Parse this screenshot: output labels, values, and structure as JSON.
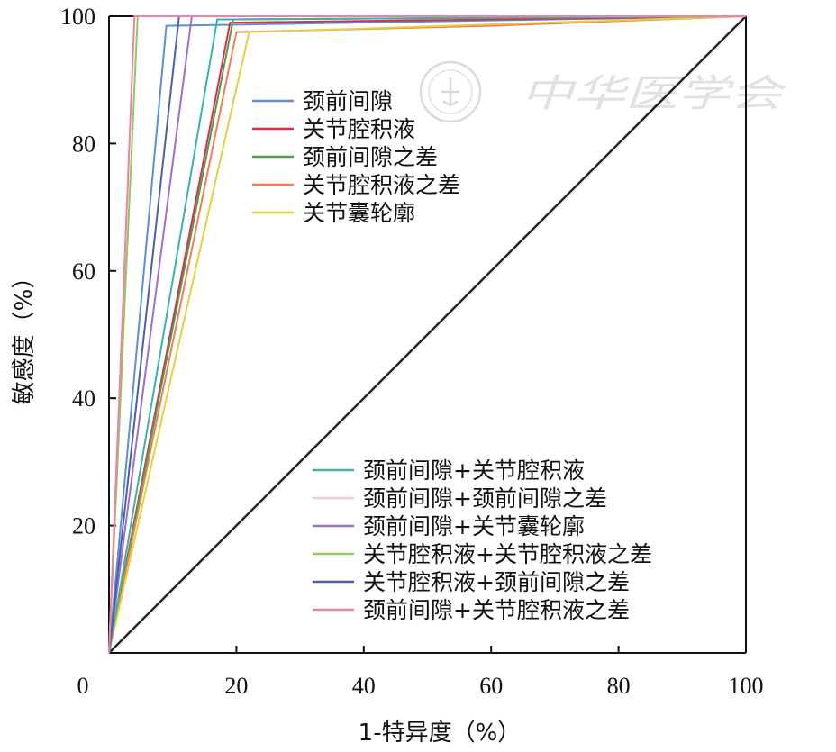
{
  "chart_data": {
    "type": "line",
    "title": "",
    "xlabel": "1-特异度（%）",
    "ylabel": "敏感度（%）",
    "xlim": [
      0,
      100
    ],
    "ylim": [
      0,
      100
    ],
    "x_ticks": [
      "0",
      "20",
      "40",
      "60",
      "80",
      "100"
    ],
    "y_ticks": [
      "20",
      "40",
      "60",
      "80",
      "100"
    ],
    "grid": false,
    "legend_placement": "two groups: upper-left and lower-right",
    "series": [
      {
        "name": "颈前间隙",
        "color": "#5b8fd6",
        "legend_group": 1,
        "points": [
          [
            0,
            0
          ],
          [
            9,
            98.5
          ],
          [
            100,
            100
          ]
        ]
      },
      {
        "name": "关节腔积液",
        "color": "#d9304a",
        "legend_group": 1,
        "points": [
          [
            0,
            0
          ],
          [
            19,
            99
          ],
          [
            100,
            100
          ]
        ]
      },
      {
        "name": "颈前间隙之差",
        "color": "#4f9a4f",
        "legend_group": 1,
        "points": [
          [
            0,
            0
          ],
          [
            19.5,
            99.5
          ],
          [
            100,
            100
          ]
        ]
      },
      {
        "name": "关节腔积液之差",
        "color": "#ee7f4f",
        "legend_group": 1,
        "points": [
          [
            0,
            0
          ],
          [
            20,
            97.5
          ],
          [
            60,
            98.5
          ],
          [
            100,
            100
          ]
        ]
      },
      {
        "name": "关节囊轮廓",
        "color": "#e3d23d",
        "legend_group": 1,
        "points": [
          [
            0,
            0
          ],
          [
            22,
            97.5
          ],
          [
            100,
            100
          ]
        ]
      },
      {
        "name": "颈前间隙+关节腔积液",
        "color": "#3bb3a8",
        "legend_group": 2,
        "points": [
          [
            0,
            0
          ],
          [
            17,
            99.5
          ],
          [
            100,
            100
          ]
        ]
      },
      {
        "name": "颈前间隙+颈前间隙之差",
        "color": "#f5c6d4",
        "legend_group": 2,
        "points": [
          [
            0,
            0
          ],
          [
            4,
            100
          ],
          [
            100,
            100
          ]
        ]
      },
      {
        "name": "颈前间隙+关节囊轮廓",
        "color": "#9b6fcc",
        "legend_group": 2,
        "points": [
          [
            0,
            0
          ],
          [
            13,
            100
          ],
          [
            100,
            100
          ]
        ]
      },
      {
        "name": "关节腔积液+关节腔积液之差",
        "color": "#8dcc58",
        "legend_group": 2,
        "points": [
          [
            0,
            0
          ],
          [
            4.5,
            100
          ],
          [
            100,
            100
          ]
        ]
      },
      {
        "name": "关节腔积液+颈前间隙之差",
        "color": "#4a5fa6",
        "legend_group": 2,
        "points": [
          [
            0,
            0
          ],
          [
            11,
            100
          ],
          [
            100,
            100
          ]
        ]
      },
      {
        "name": "颈前间隙+关节腔积液之差",
        "color": "#ee82a8",
        "legend_group": 2,
        "points": [
          [
            0,
            0
          ],
          [
            4,
            100
          ],
          [
            100,
            100
          ]
        ]
      }
    ],
    "reference_line": {
      "color": "#222222",
      "points": [
        [
          0,
          0
        ],
        [
          100,
          100
        ]
      ]
    }
  },
  "watermark": {
    "text": "中华医学会",
    "seal_icon": "society-seal-icon"
  }
}
